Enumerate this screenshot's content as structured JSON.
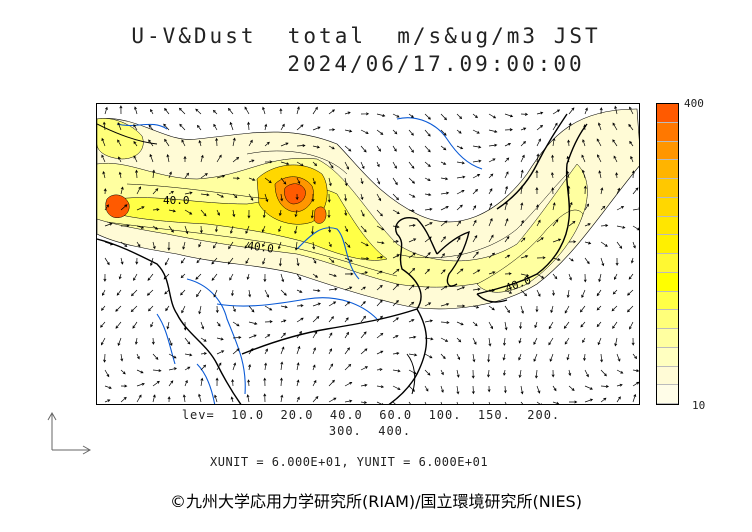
{
  "title_line1": "U-V&Dust  total  m/s&ug/m3 JST",
  "title_line2": "2024/06/17.09:00:00",
  "colorbar": {
    "max_label": "400",
    "min_label": "10",
    "colors": [
      "#ff5a00",
      "#ff7800",
      "#ff9600",
      "#ffb400",
      "#ffc800",
      "#ffd700",
      "#ffe600",
      "#fff000",
      "#fff832",
      "#ffff00",
      "#ffff46",
      "#ffff7a",
      "#ffffa0",
      "#ffffc0",
      "#fffbd6",
      "#fffde8"
    ]
  },
  "map": {
    "contour_labels": [
      "40.0",
      "40.0",
      "40.0"
    ],
    "colors": {
      "coast": "#000000",
      "rivers": "#0a5ad6",
      "contour": "#000000"
    }
  },
  "levels_line1": "lev=  10.0  20.0  40.0  60.0  100.  150.  200.",
  "levels_line2": "300.  400.",
  "units": "XUNIT = 6.000E+01, YUNIT = 6.000E+01",
  "copyright": "©九州大学応用力学研究所(RIAM)/国立環境研究所(NIES)"
}
